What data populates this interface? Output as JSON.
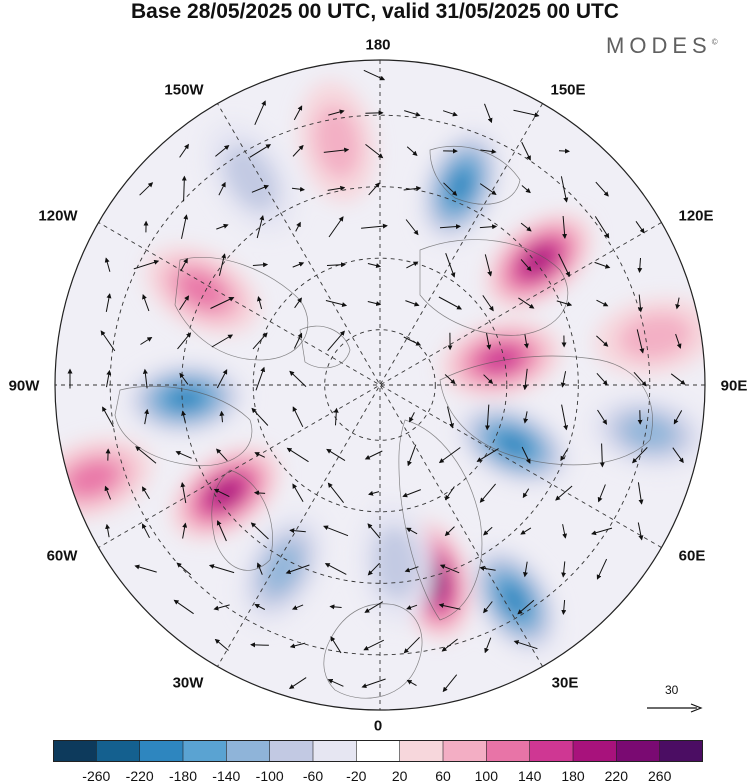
{
  "title": "Base 28/05/2025 00 UTC, valid 31/05/2025 00 UTC",
  "logo": "MODES",
  "logo_mark": "©",
  "longitude_labels": {
    "north": "180",
    "south": "0",
    "west": "90W",
    "east": "90E",
    "nw150": "150W",
    "nw120": "120W",
    "sw60": "60W",
    "sw30": "30W",
    "ne150": "150E",
    "ne120": "120E",
    "se60": "60E",
    "se30": "30E"
  },
  "vector_scale": {
    "label": "30"
  },
  "colorbar": {
    "ticks": [
      "-260",
      "-220",
      "-180",
      "-140",
      "-100",
      "-60",
      "-20",
      "20",
      "60",
      "100",
      "140",
      "180",
      "220",
      "260"
    ],
    "colors": [
      "#0d3a5c",
      "#14608f",
      "#2e86bf",
      "#5aa3d2",
      "#8fb4d9",
      "#c2c9e3",
      "#e6e6f2",
      "#ffffff",
      "#f7d7dc",
      "#f3aec4",
      "#e874a7",
      "#cf3793",
      "#a8127c",
      "#7a0a72",
      "#4b0d63"
    ]
  },
  "anomaly_centers": [
    {
      "id": "low-pacific-ne",
      "angle": 148,
      "r": 0.78,
      "sign": -1,
      "level": 4
    },
    {
      "id": "high-siberia-e",
      "angle": 165,
      "r": 0.62,
      "sign": 1,
      "level": 5
    },
    {
      "id": "low-siberia-c",
      "angle": 114,
      "r": 0.45,
      "sign": -1,
      "level": 4
    },
    {
      "id": "high-asia-c",
      "angle": 78,
      "r": 0.38,
      "sign": 1,
      "level": 3
    },
    {
      "id": "low-asia-e",
      "angle": 100,
      "r": 0.84,
      "sign": -1,
      "level": 2
    },
    {
      "id": "high-caspian",
      "angle": 52,
      "r": 0.62,
      "sign": 1,
      "level": 4
    },
    {
      "id": "low-europe-e",
      "angle": 22,
      "r": 0.66,
      "sign": -1,
      "level": 4
    },
    {
      "id": "high-west-africa",
      "angle": -10,
      "r": 0.76,
      "sign": 1,
      "level": 1
    },
    {
      "id": "low-hudson",
      "angle": -94,
      "r": 0.6,
      "sign": -1,
      "level": 4
    },
    {
      "id": "high-canada-w",
      "angle": -125,
      "r": 0.58,
      "sign": 1,
      "level": 4
    },
    {
      "id": "high-pacific-e",
      "angle": -108,
      "r": 0.93,
      "sign": 1,
      "level": 2
    },
    {
      "id": "high-atlantic",
      "angle": -62,
      "r": 0.62,
      "sign": 1,
      "level": 2
    },
    {
      "id": "low-alaska",
      "angle": -152,
      "r": 0.64,
      "sign": -1,
      "level": 2
    },
    {
      "id": "low-bering",
      "angle": 175,
      "r": 0.55,
      "sign": -1,
      "level": 1
    },
    {
      "id": "low-atlantic-s",
      "angle": -32,
      "r": 0.75,
      "sign": -1,
      "level": 1
    },
    {
      "id": "high-india",
      "angle": 80,
      "r": 0.86,
      "sign": 1,
      "level": 1
    }
  ]
}
